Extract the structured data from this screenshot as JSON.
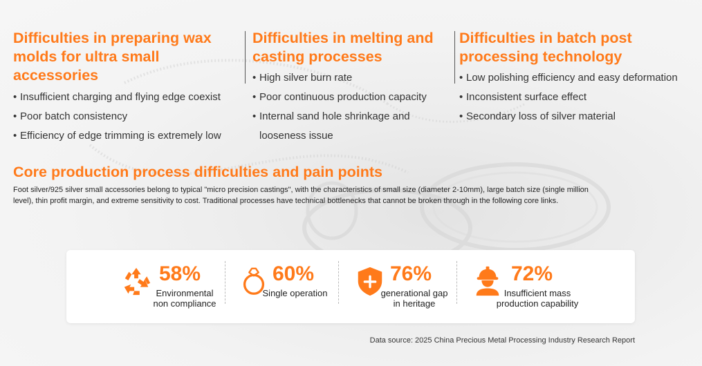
{
  "columns": [
    {
      "title": "Difficulties in preparing wax molds for ultra small accessories",
      "items": [
        "Insufficient charging and flying edge coexist",
        "Poor batch consistency",
        "Efficiency of edge trimming is extremely low"
      ]
    },
    {
      "title": "Difficulties in melting and casting processes",
      "items": [
        "High silver burn rate",
        "Poor continuous production capacity",
        "Internal sand hole shrinkage and looseness issue"
      ]
    },
    {
      "title": "Difficulties in batch post processing technology",
      "items": [
        "Low polishing efficiency and easy deformation",
        "Inconsistent surface effect",
        "Secondary loss of silver material"
      ]
    }
  ],
  "section": {
    "title": "Core production process difficulties and pain points",
    "description": "Foot silver/925 silver small accessories belong to typical \"micro precision castings\", with the characteristics of small size (diameter 2-10mm), large batch size (single million level), thin profit margin, and extreme sensitivity to cost. Traditional processes have technical bottlenecks that cannot be broken through in the following core links."
  },
  "stats": [
    {
      "value": "58%",
      "label_line1": "Environmental",
      "label_line2": "non compliance",
      "icon": "recycle-icon"
    },
    {
      "value": "60%",
      "label_line1": "Single operation",
      "label_line2": "",
      "icon": "ring-icon"
    },
    {
      "value": "76%",
      "label_line1": "generational gap",
      "label_line2": "in heritage",
      "icon": "shield-plus-icon"
    },
    {
      "value": "72%",
      "label_line1": "Insufficient mass",
      "label_line2": "production capability",
      "icon": "worker-icon"
    }
  ],
  "source": "Data source: 2025 China Precious Metal Processing Industry Research Report",
  "colors": {
    "accent": "#ff7a1a",
    "text": "#333333",
    "card": "#ffffff"
  }
}
